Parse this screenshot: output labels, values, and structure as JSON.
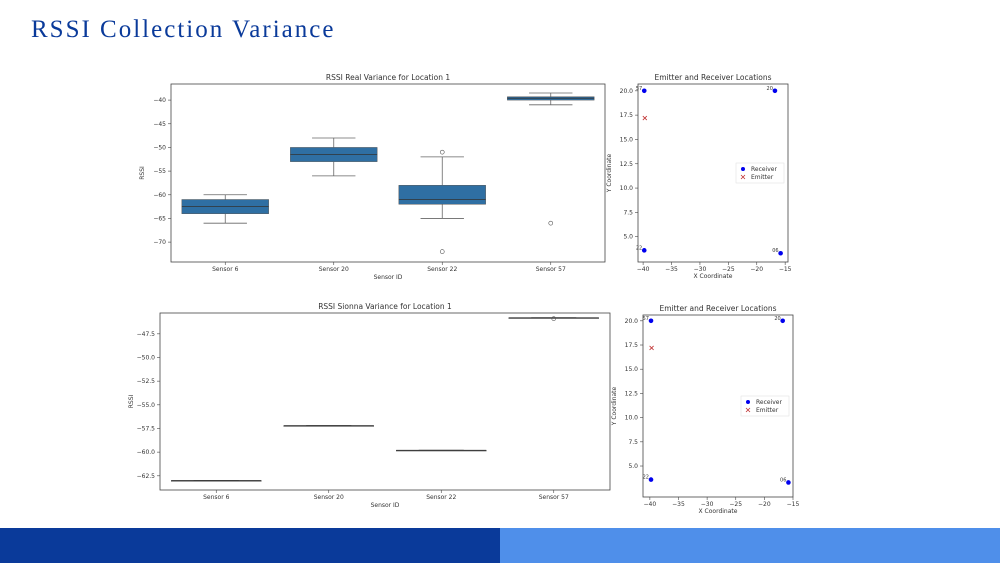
{
  "slide": {
    "title": "RSSI Collection Variance",
    "footer_colors": [
      "#0a3a9a",
      "#4f8fea"
    ]
  },
  "chart_data": [
    {
      "type": "box",
      "title": "RSSI Real Variance for Location 1",
      "xlabel": "Sensor ID",
      "ylabel": "RSSI",
      "categories": [
        "Sensor 6",
        "Sensor 20",
        "Sensor 22",
        "Sensor 57"
      ],
      "ylim": [
        -74.2,
        -36.6
      ],
      "yticks": [
        -40,
        -45,
        -50,
        -55,
        -60,
        -65,
        -70
      ],
      "color": "#2f6fa3",
      "boxes": [
        {
          "whisker_low": -66,
          "q1": -64,
          "median": -62.5,
          "q3": -61,
          "whisker_high": -60,
          "outliers": []
        },
        {
          "whisker_low": -56,
          "q1": -53,
          "median": -51.5,
          "q3": -50,
          "whisker_high": -48,
          "outliers": []
        },
        {
          "whisker_low": -65,
          "q1": -62,
          "median": -61,
          "q3": -58,
          "whisker_high": -52,
          "outliers": [
            -51,
            -72
          ]
        },
        {
          "whisker_low": -41,
          "q1": -40,
          "median": -39.6,
          "q3": -39.3,
          "whisker_high": -38.5,
          "outliers": [
            -66
          ]
        }
      ]
    },
    {
      "type": "scatter",
      "title": "Emitter and Receiver Locations",
      "xlabel": "X Coordinate",
      "ylabel": "Y Coordinate",
      "xlim": [
        -40.9,
        -14.5
      ],
      "ylim": [
        2.4,
        20.7
      ],
      "xticks": [
        -40,
        -35,
        -30,
        -25,
        -20,
        -15
      ],
      "yticks": [
        5.0,
        7.5,
        10.0,
        12.5,
        15.0,
        17.5,
        20.0
      ],
      "legend": "center-right",
      "series": [
        {
          "name": "Receiver",
          "marker": "circle",
          "color": "#0000ee",
          "points": [
            {
              "x": -39.8,
              "y": 20.0,
              "label": "57"
            },
            {
              "x": -16.8,
              "y": 20.0,
              "label": "20"
            },
            {
              "x": -39.8,
              "y": 3.6,
              "label": "22"
            },
            {
              "x": -15.8,
              "y": 3.3,
              "label": "06"
            }
          ]
        },
        {
          "name": "Emitter",
          "marker": "x",
          "color": "#c03030",
          "points": [
            {
              "x": -39.7,
              "y": 17.2
            }
          ]
        }
      ]
    },
    {
      "type": "box",
      "title": "RSSI Sionna Variance for Location 1",
      "xlabel": "Sensor ID",
      "ylabel": "RSSI",
      "categories": [
        "Sensor 6",
        "Sensor 20",
        "Sensor 22",
        "Sensor 57"
      ],
      "ylim": [
        -64.0,
        -45.3
      ],
      "yticks": [
        -47.5,
        -50.0,
        -52.5,
        -55.0,
        -57.5,
        -60.0,
        -62.5
      ],
      "color": "#2f6fa3",
      "boxes": [
        {
          "whisker_low": -63.0,
          "q1": -63.0,
          "median": -63.0,
          "q3": -63.0,
          "whisker_high": -63.0,
          "outliers": []
        },
        {
          "whisker_low": -57.2,
          "q1": -57.2,
          "median": -57.2,
          "q3": -57.2,
          "whisker_high": -57.2,
          "outliers": []
        },
        {
          "whisker_low": -59.8,
          "q1": -59.8,
          "median": -59.8,
          "q3": -59.8,
          "whisker_high": -59.8,
          "outliers": []
        },
        {
          "whisker_low": -45.8,
          "q1": -45.8,
          "median": -45.8,
          "q3": -45.8,
          "whisker_high": -45.8,
          "outliers": [
            -45.9
          ]
        }
      ]
    },
    {
      "type": "scatter",
      "title": "Emitter and Receiver Locations",
      "xlabel": "X Coordinate",
      "ylabel": "Y Coordinate",
      "xlim": [
        -41.2,
        -15.0
      ],
      "ylim": [
        1.8,
        20.6
      ],
      "xticks": [
        -40,
        -35,
        -30,
        -25,
        -20,
        -15
      ],
      "yticks": [
        5.0,
        7.5,
        10.0,
        12.5,
        15.0,
        17.5,
        20.0
      ],
      "legend": "center-right",
      "series": [
        {
          "name": "Receiver",
          "marker": "circle",
          "color": "#0000ee",
          "points": [
            {
              "x": -39.8,
              "y": 20.0,
              "label": "57"
            },
            {
              "x": -16.8,
              "y": 20.0,
              "label": "20"
            },
            {
              "x": -39.8,
              "y": 3.6,
              "label": "22"
            },
            {
              "x": -15.8,
              "y": 3.3,
              "label": "06"
            }
          ]
        },
        {
          "name": "Emitter",
          "marker": "x",
          "color": "#c03030",
          "points": [
            {
              "x": -39.7,
              "y": 17.2
            }
          ]
        }
      ]
    }
  ]
}
